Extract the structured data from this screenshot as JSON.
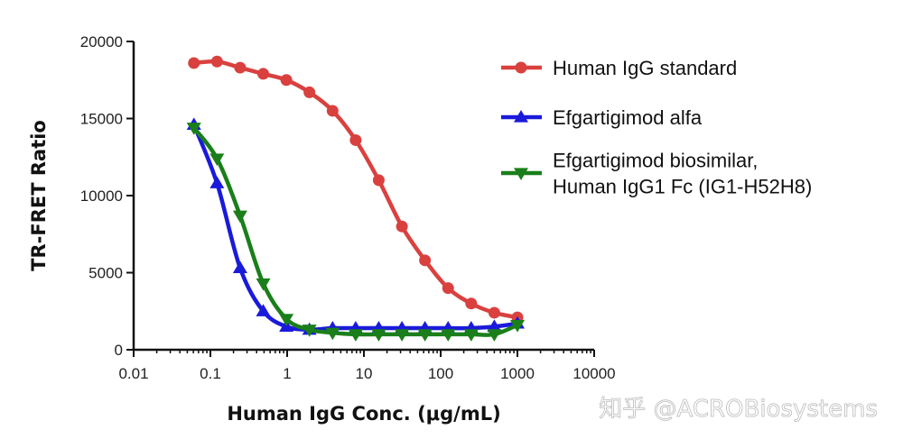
{
  "chart_data": {
    "type": "line",
    "title": "",
    "xlabel": "Human IgG Conc. (μg/mL)",
    "ylabel": "TR-FRET Ratio",
    "xscale": "log",
    "xlim": [
      0.01,
      10000
    ],
    "ylim": [
      0,
      20000
    ],
    "xticks": [
      "0.01",
      "0.1",
      "1",
      "10",
      "100",
      "1000",
      "10000"
    ],
    "yticks": [
      "0",
      "5000",
      "10000",
      "15000",
      "20000"
    ],
    "grid": false,
    "legend_position": "right",
    "x": [
      0.061,
      0.122,
      0.244,
      0.488,
      0.977,
      1.95,
      3.91,
      7.81,
      15.6,
      31.3,
      62.5,
      125,
      250,
      500,
      1000
    ],
    "series": [
      {
        "name": "Human IgG standard",
        "color": "#d9413f",
        "marker": "circle",
        "values": [
          18600,
          18700,
          18300,
          17900,
          17500,
          16700,
          15500,
          13600,
          11000,
          8000,
          5800,
          4000,
          3000,
          2400,
          2100
        ]
      },
      {
        "name": "Efgartigimod alfa",
        "color": "#1a1adb",
        "marker": "triangle-up",
        "values": [
          14600,
          10800,
          5300,
          2500,
          1500,
          1300,
          1400,
          1400,
          1400,
          1400,
          1400,
          1400,
          1400,
          1500,
          1700
        ]
      },
      {
        "name": "Efgartigimod biosimilar,\nHuman IgG1 Fc (IG1-H52H8)",
        "legend_lines": [
          "Efgartigimod biosimilar,",
          "Human IgG1 Fc (IG1-H52H8)"
        ],
        "color": "#1a7f1a",
        "marker": "triangle-down",
        "values": [
          14400,
          12400,
          8700,
          4300,
          2000,
          1300,
          1100,
          1000,
          1000,
          1000,
          1000,
          1000,
          1000,
          1000,
          1600
        ]
      }
    ]
  },
  "watermark": "知乎 @ACROBiosystems"
}
